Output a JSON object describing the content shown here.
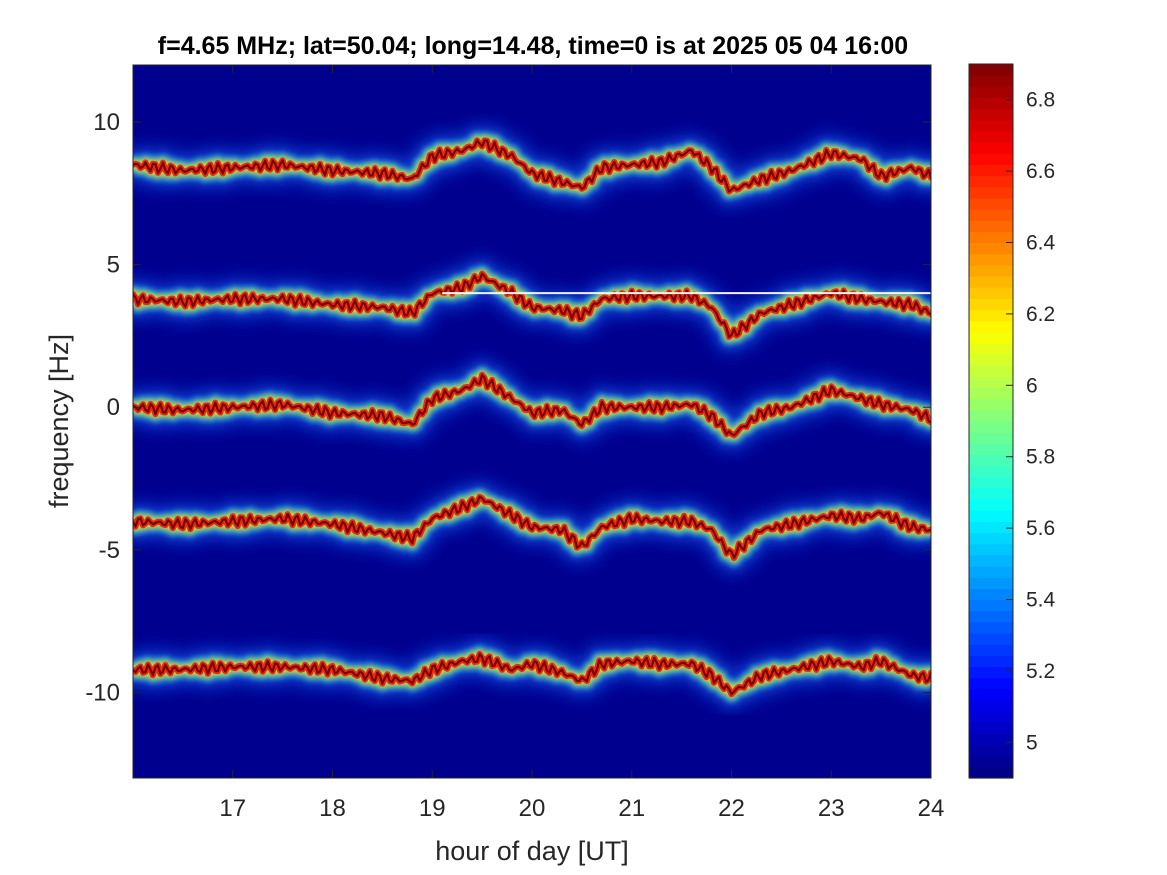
{
  "chart_data": {
    "type": "heatmap",
    "title": "f=4.65 MHz;  lat=50.04; long=14.48, time=0 is at 2025 05 04 16:00",
    "xlabel": "hour of day [UT]",
    "ylabel": "frequency [Hz]",
    "xlim": [
      16,
      24
    ],
    "ylim": [
      -13,
      12
    ],
    "xticks": [
      17,
      18,
      19,
      20,
      21,
      22,
      23,
      24
    ],
    "yticks": [
      10,
      5,
      0,
      -5,
      -10
    ],
    "grid": false,
    "background_color": "#00008f",
    "colorbar": {
      "colormap": "jet",
      "range": [
        4.9,
        6.9
      ],
      "ticks": [
        5,
        5.2,
        5.4,
        5.6,
        5.8,
        6,
        6.2,
        6.4,
        6.6,
        6.8
      ]
    },
    "traces": [
      {
        "base_frequency": 8.5,
        "x": [
          16.0,
          16.5,
          17.0,
          17.5,
          18.0,
          18.5,
          18.8,
          19.0,
          19.3,
          19.5,
          19.8,
          20.0,
          20.3,
          20.5,
          20.7,
          21.0,
          21.3,
          21.6,
          21.8,
          22.0,
          22.3,
          22.6,
          23.0,
          23.3,
          23.5,
          23.8,
          24.0
        ],
        "y": [
          8.5,
          8.3,
          8.4,
          8.5,
          8.3,
          8.2,
          8.0,
          8.8,
          9.0,
          9.3,
          8.8,
          8.2,
          7.9,
          7.7,
          8.4,
          8.5,
          8.6,
          9.0,
          8.4,
          7.6,
          8.0,
          8.3,
          8.9,
          8.7,
          8.1,
          8.4,
          8.1
        ]
      },
      {
        "base_frequency": 3.8,
        "x": [
          16.0,
          16.5,
          17.0,
          17.5,
          18.0,
          18.5,
          18.8,
          19.0,
          19.3,
          19.5,
          19.8,
          20.0,
          20.3,
          20.5,
          20.7,
          21.0,
          21.3,
          21.6,
          21.8,
          22.0,
          22.3,
          22.6,
          23.0,
          23.3,
          23.5,
          23.8,
          24.0
        ],
        "y": [
          3.8,
          3.7,
          3.8,
          3.8,
          3.6,
          3.5,
          3.3,
          4.0,
          4.2,
          4.6,
          4.0,
          3.5,
          3.4,
          3.2,
          3.8,
          3.9,
          3.9,
          3.9,
          3.5,
          2.5,
          3.3,
          3.6,
          4.0,
          3.8,
          3.7,
          3.6,
          3.3
        ]
      },
      {
        "base_frequency": 0.0,
        "x": [
          16.0,
          16.5,
          17.0,
          17.5,
          18.0,
          18.5,
          18.8,
          19.0,
          19.3,
          19.5,
          19.8,
          20.0,
          20.3,
          20.5,
          20.7,
          21.0,
          21.3,
          21.6,
          21.8,
          22.0,
          22.3,
          22.6,
          23.0,
          23.3,
          23.5,
          23.8,
          24.0
        ],
        "y": [
          0.0,
          -0.1,
          0.0,
          0.1,
          -0.2,
          -0.3,
          -0.6,
          0.3,
          0.6,
          1.0,
          0.3,
          -0.2,
          -0.1,
          -0.6,
          0.0,
          0.0,
          0.0,
          0.1,
          -0.3,
          -1.0,
          -0.2,
          0.0,
          0.6,
          0.3,
          0.1,
          -0.1,
          -0.4
        ]
      },
      {
        "base_frequency": -4.0,
        "x": [
          16.0,
          16.5,
          17.0,
          17.5,
          18.0,
          18.5,
          18.8,
          19.0,
          19.3,
          19.5,
          19.8,
          20.0,
          20.3,
          20.5,
          20.7,
          21.0,
          21.3,
          21.6,
          21.8,
          22.0,
          22.3,
          22.6,
          23.0,
          23.3,
          23.5,
          23.8,
          24.0
        ],
        "y": [
          -4.0,
          -4.1,
          -4.0,
          -3.9,
          -4.1,
          -4.4,
          -4.6,
          -3.9,
          -3.5,
          -3.2,
          -3.8,
          -4.2,
          -4.3,
          -4.9,
          -4.2,
          -3.9,
          -4.0,
          -4.0,
          -4.3,
          -5.2,
          -4.3,
          -4.1,
          -3.8,
          -3.9,
          -3.7,
          -4.2,
          -4.3
        ]
      },
      {
        "base_frequency": -9.2,
        "x": [
          16.0,
          16.5,
          17.0,
          17.5,
          18.0,
          18.5,
          18.8,
          19.0,
          19.3,
          19.5,
          19.8,
          20.0,
          20.3,
          20.5,
          20.7,
          21.0,
          21.3,
          21.6,
          21.8,
          22.0,
          22.3,
          22.6,
          23.0,
          23.3,
          23.5,
          23.8,
          24.0
        ],
        "y": [
          -9.2,
          -9.2,
          -9.1,
          -9.1,
          -9.2,
          -9.5,
          -9.6,
          -9.2,
          -8.9,
          -8.8,
          -9.2,
          -9.0,
          -9.3,
          -9.6,
          -9.0,
          -8.9,
          -9.0,
          -9.0,
          -9.4,
          -10.0,
          -9.4,
          -9.2,
          -8.9,
          -9.1,
          -8.9,
          -9.4,
          -9.5
        ]
      }
    ],
    "constant_line": {
      "y": 4.0,
      "x_start": 19.1,
      "x_end": 24.0
    }
  }
}
